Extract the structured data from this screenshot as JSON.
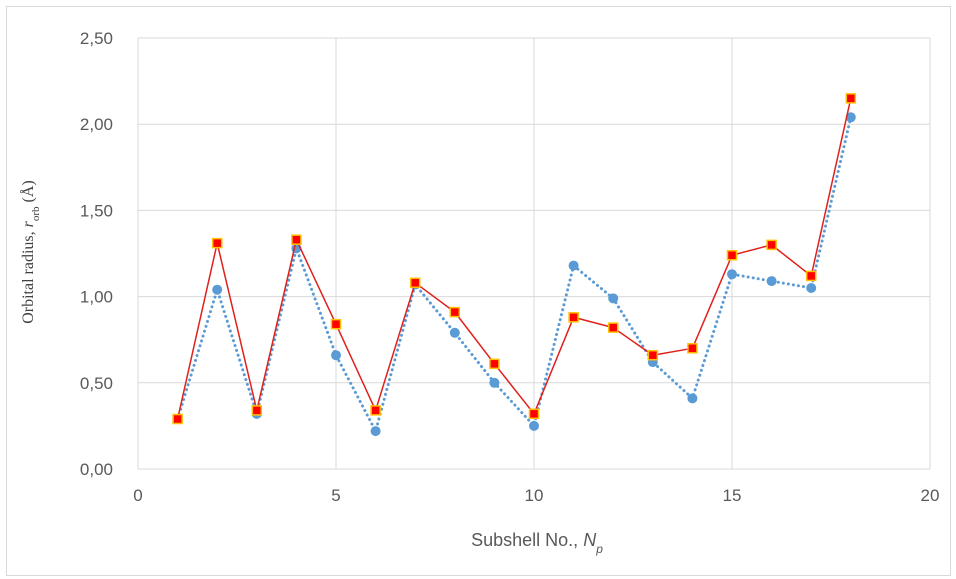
{
  "chart_data": {
    "type": "line",
    "xlabel": {
      "main": "Subshell No., ",
      "var": "N",
      "sub": "p"
    },
    "ylabel": {
      "main": "Orbital radius, ",
      "var": "r",
      "sub": "orb",
      "unit": " (Å)"
    },
    "xlim": [
      0,
      20
    ],
    "ylim": [
      0,
      2.5
    ],
    "x_ticks": [
      "0",
      "5",
      "10",
      "15",
      "20"
    ],
    "x_tick_values": [
      0,
      5,
      10,
      15,
      20
    ],
    "y_ticks": [
      "0,00",
      "0,50",
      "1,00",
      "1,50",
      "2,00",
      "2,50"
    ],
    "y_tick_values": [
      0,
      0.5,
      1.0,
      1.5,
      2.0,
      2.5
    ],
    "grid": true,
    "legend": "none",
    "x": [
      1,
      2,
      3,
      4,
      5,
      6,
      7,
      8,
      9,
      10,
      11,
      12,
      13,
      14,
      15,
      16,
      17,
      18
    ],
    "series": [
      {
        "style": "dotted-line-circle",
        "color": "#5b9bd5",
        "values": [
          0.29,
          1.04,
          0.32,
          1.28,
          0.66,
          0.22,
          1.07,
          0.79,
          0.5,
          0.25,
          1.18,
          0.99,
          0.62,
          0.41,
          1.13,
          1.09,
          1.05,
          2.04
        ]
      },
      {
        "style": "solid-line-square",
        "color": "#e0201b",
        "marker_fill": "#ff0000",
        "marker_edge": "#ffc000",
        "values": [
          0.29,
          1.31,
          0.34,
          1.33,
          0.84,
          0.34,
          1.08,
          0.91,
          0.61,
          0.32,
          0.88,
          0.82,
          0.66,
          0.7,
          1.24,
          1.3,
          1.12,
          2.15
        ]
      }
    ]
  }
}
